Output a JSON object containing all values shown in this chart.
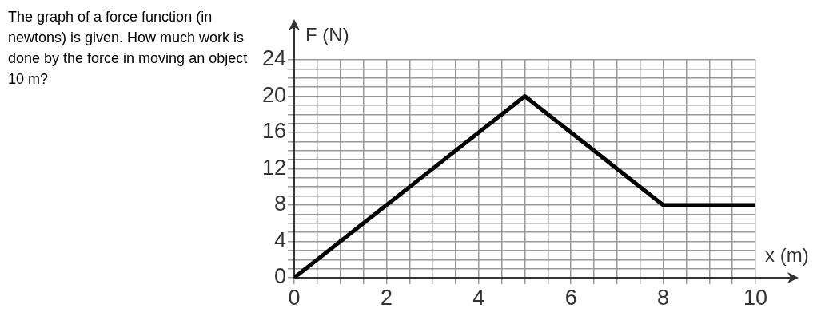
{
  "chart_data": {
    "type": "line",
    "title": "The graph of a force function (in newtons) is given. How much work is done by the force in moving an object 10 m?",
    "xlabel": "x (m)",
    "ylabel": "F (N)",
    "x": [
      0,
      5,
      8,
      10
    ],
    "values": [
      0,
      20,
      8,
      8
    ],
    "color": "#000000",
    "marker": "none",
    "line_style": "solid",
    "grid": true,
    "xlim": [
      0,
      10
    ],
    "ylim": [
      0,
      24
    ],
    "xticks": [
      0,
      {
        "value": 0.5,
        "label": null
      },
      {
        "value": 1,
        "label": null
      },
      {
        "value": 1.5,
        "label": null
      },
      2,
      {
        "value": 2.5,
        "label": null
      },
      {
        "value": 3,
        "label": null
      },
      {
        "value": 3.5,
        "label": null
      },
      4,
      {
        "value": 4.5,
        "label": null
      },
      {
        "value": 5,
        "label": null
      },
      {
        "value": 5.5,
        "label": null
      },
      6,
      {
        "value": 6.5,
        "label": null
      },
      {
        "value": 7,
        "label": null
      },
      {
        "value": 7.5,
        "label": null
      },
      8,
      {
        "value": 8.5,
        "label": null
      },
      {
        "value": 9,
        "label": null
      },
      {
        "value": 9.5,
        "label": null
      },
      10
    ],
    "yticks": [
      0,
      {
        "value": 1,
        "label": null
      },
      {
        "value": 2,
        "label": null
      },
      {
        "value": 3,
        "label": null
      },
      4,
      {
        "value": 5,
        "label": null
      },
      {
        "value": 6,
        "label": null
      },
      {
        "value": 7,
        "label": null
      },
      8,
      {
        "value": 9,
        "label": null
      },
      {
        "value": 10,
        "label": null
      },
      {
        "value": 11,
        "label": null
      },
      12,
      {
        "value": 13,
        "label": null
      },
      {
        "value": 14,
        "label": null
      },
      {
        "value": 15,
        "label": null
      },
      16,
      {
        "value": 17,
        "label": null
      },
      {
        "value": 18,
        "label": null
      },
      {
        "value": 19,
        "label": null
      },
      20,
      {
        "value": 21,
        "label": null
      },
      {
        "value": 22,
        "label": null
      },
      {
        "value": 23,
        "label": null
      },
      24
    ]
  }
}
